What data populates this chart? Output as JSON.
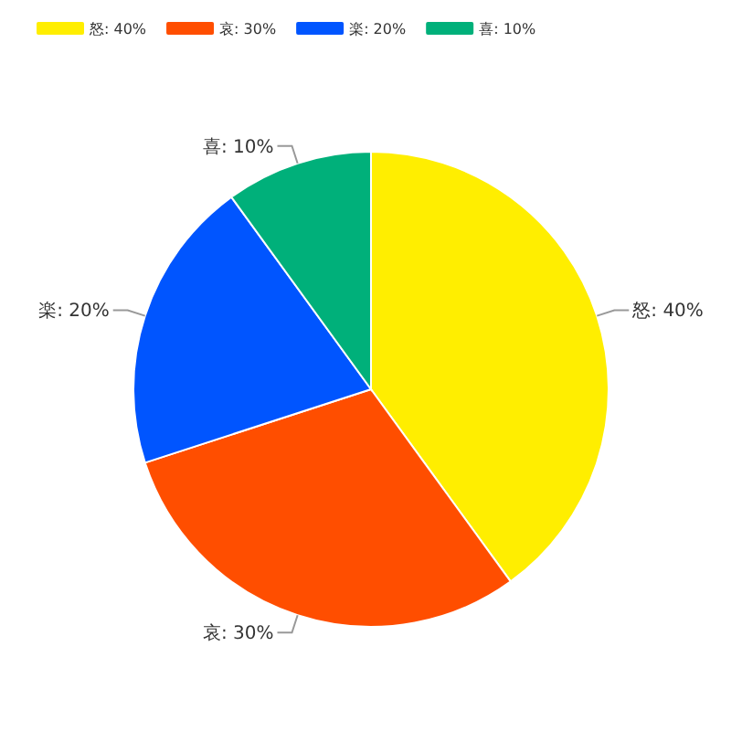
{
  "chart_data": {
    "type": "pie",
    "categories": [
      "怒: 40%",
      "哀: 30%",
      "楽: 20%",
      "喜: 10%"
    ],
    "values": [
      40,
      30,
      20,
      10
    ],
    "colors": [
      "#ffee00",
      "#ff4e00",
      "#0055ff",
      "#00b07a"
    ],
    "value_labels": [
      "怒: 40%",
      "哀: 30%",
      "楽: 20%",
      "喜: 10%"
    ],
    "legend": "top left"
  }
}
